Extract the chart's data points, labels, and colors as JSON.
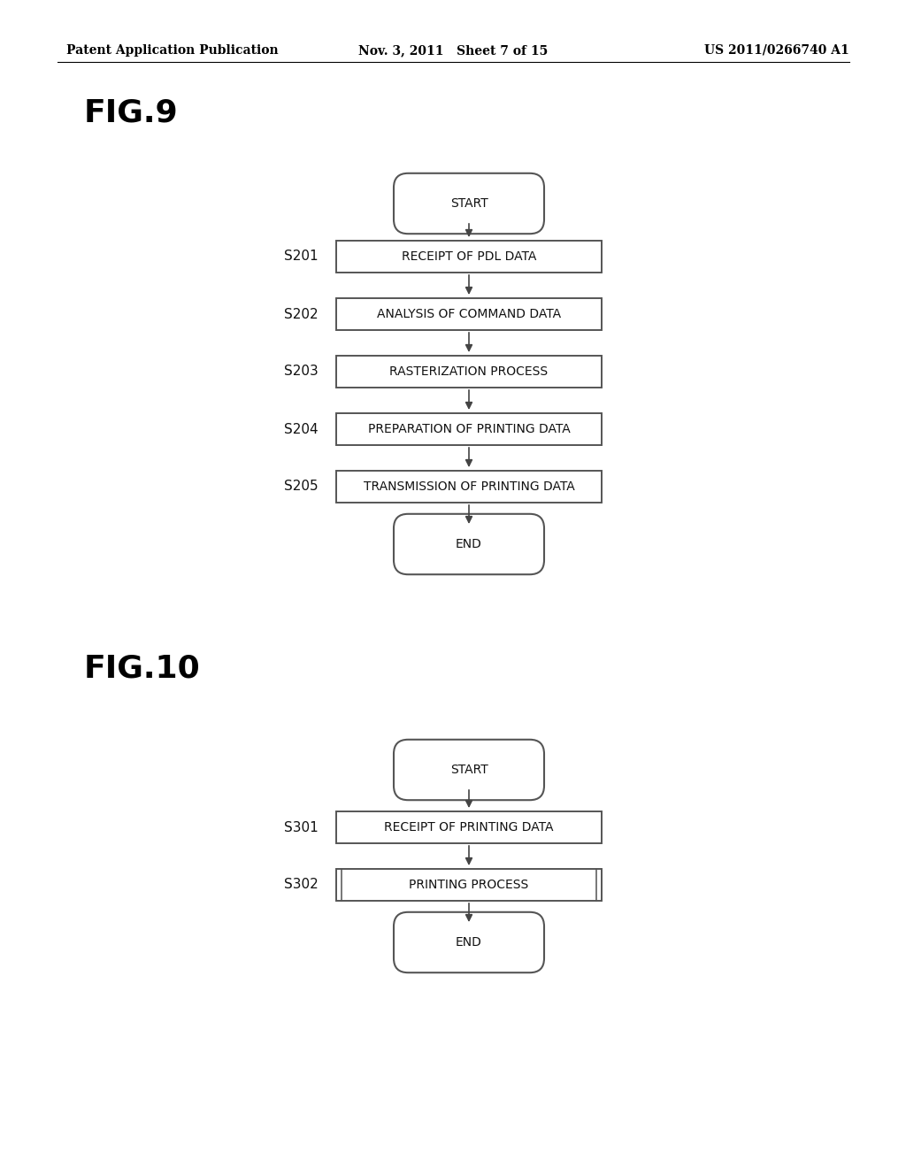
{
  "bg_color": "#ffffff",
  "header_left": "Patent Application Publication",
  "header_center": "Nov. 3, 2011   Sheet 7 of 15",
  "header_right": "US 2011/0266740 A1",
  "fig9_title": "FIG.9",
  "fig10_title": "FIG.10",
  "fig9_steps": [
    {
      "label": "S201",
      "text": "RECEIPT OF PDL DATA"
    },
    {
      "label": "S202",
      "text": "ANALYSIS OF COMMAND DATA"
    },
    {
      "label": "S203",
      "text": "RASTERIZATION PROCESS"
    },
    {
      "label": "S204",
      "text": "PREPARATION OF PRINTING DATA"
    },
    {
      "label": "S205",
      "text": "TRANSMISSION OF PRINTING DATA"
    }
  ],
  "fig10_steps": [
    {
      "label": "S301",
      "text": "RECEIPT OF PRINTING DATA"
    },
    {
      "label": "S302",
      "text": "PRINTING PROCESS",
      "double_border": true
    }
  ],
  "arrow_color": "#444444",
  "box_edge_color": "#555555",
  "text_color": "#111111",
  "font_size_box": 10,
  "font_size_label": 11,
  "font_size_title": 26,
  "font_size_header": 10
}
